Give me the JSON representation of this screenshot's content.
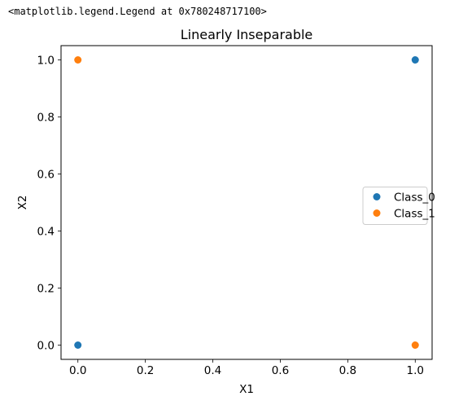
{
  "repr_text": "<matplotlib.legend.Legend at 0x780248717100>",
  "chart_data": {
    "type": "scatter",
    "title": "Linearly Inseparable",
    "xlabel": "X1",
    "ylabel": "X2",
    "xlim": [
      -0.05,
      1.05
    ],
    "ylim": [
      -0.05,
      1.05
    ],
    "xticks": [
      "0.0",
      "0.2",
      "0.4",
      "0.6",
      "0.8",
      "1.0"
    ],
    "yticks": [
      "0.0",
      "0.2",
      "0.4",
      "0.6",
      "0.8",
      "1.0"
    ],
    "grid": false,
    "legend_position": "center-right",
    "series": [
      {
        "name": "Class_0",
        "color": "#1f77b4",
        "points": [
          {
            "x": 0,
            "y": 0
          },
          {
            "x": 1,
            "y": 1
          }
        ]
      },
      {
        "name": "Class_1",
        "color": "#ff7f0e",
        "points": [
          {
            "x": 0,
            "y": 1
          },
          {
            "x": 1,
            "y": 0
          }
        ]
      }
    ]
  }
}
